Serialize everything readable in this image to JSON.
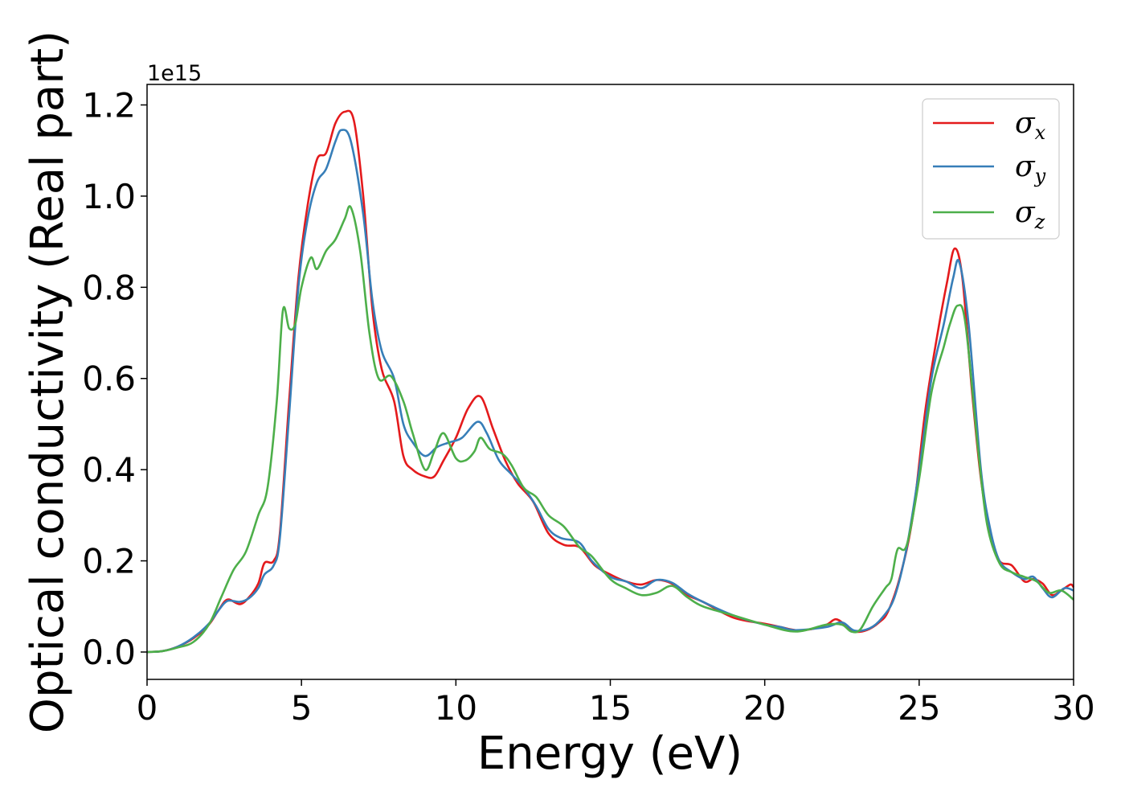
{
  "chart_data": {
    "type": "line",
    "xlabel": "Energy (eV)",
    "ylabel": "Optical conductivity (Real part)",
    "y_offset_label": "1e15",
    "xlim": [
      0,
      30
    ],
    "ylim": [
      -0.06,
      1.245
    ],
    "x_ticks": [
      0,
      5,
      10,
      15,
      20,
      25,
      30
    ],
    "x_tick_labels": [
      "0",
      "5",
      "10",
      "15",
      "20",
      "25",
      "30"
    ],
    "y_ticks": [
      0.0,
      0.2,
      0.4,
      0.6,
      0.8,
      1.0,
      1.2
    ],
    "y_tick_labels": [
      "0.0",
      "0.2",
      "0.4",
      "0.6",
      "0.8",
      "1.0",
      "1.2"
    ],
    "grid": false,
    "legend_position": "top-right",
    "series": [
      {
        "symbol": "σ",
        "subscript": "x",
        "color": "#e41a1c",
        "points": [
          [
            0,
            0
          ],
          [
            0.5,
            0.002
          ],
          [
            1,
            0.012
          ],
          [
            1.5,
            0.03
          ],
          [
            2,
            0.06
          ],
          [
            2.3,
            0.09
          ],
          [
            2.6,
            0.115
          ],
          [
            3,
            0.105
          ],
          [
            3.3,
            0.12
          ],
          [
            3.6,
            0.15
          ],
          [
            3.8,
            0.195
          ],
          [
            4.1,
            0.2
          ],
          [
            4.3,
            0.26
          ],
          [
            4.6,
            0.55
          ],
          [
            4.9,
            0.82
          ],
          [
            5.2,
            0.98
          ],
          [
            5.5,
            1.08
          ],
          [
            5.8,
            1.095
          ],
          [
            6.1,
            1.16
          ],
          [
            6.4,
            1.185
          ],
          [
            6.7,
            1.165
          ],
          [
            7.0,
            1.0
          ],
          [
            7.3,
            0.75
          ],
          [
            7.6,
            0.62
          ],
          [
            8.0,
            0.55
          ],
          [
            8.3,
            0.43
          ],
          [
            8.6,
            0.4
          ],
          [
            9.0,
            0.385
          ],
          [
            9.3,
            0.385
          ],
          [
            9.6,
            0.42
          ],
          [
            10.0,
            0.47
          ],
          [
            10.4,
            0.535
          ],
          [
            10.8,
            0.56
          ],
          [
            11.2,
            0.49
          ],
          [
            11.6,
            0.42
          ],
          [
            12.0,
            0.37
          ],
          [
            12.5,
            0.33
          ],
          [
            13.0,
            0.26
          ],
          [
            13.5,
            0.235
          ],
          [
            14.0,
            0.23
          ],
          [
            14.5,
            0.19
          ],
          [
            15.0,
            0.17
          ],
          [
            15.5,
            0.155
          ],
          [
            16.0,
            0.148
          ],
          [
            16.5,
            0.158
          ],
          [
            17.0,
            0.15
          ],
          [
            17.5,
            0.125
          ],
          [
            18.0,
            0.11
          ],
          [
            19.0,
            0.075
          ],
          [
            20.0,
            0.062
          ],
          [
            20.5,
            0.055
          ],
          [
            21.0,
            0.048
          ],
          [
            21.5,
            0.05
          ],
          [
            22.0,
            0.06
          ],
          [
            22.3,
            0.072
          ],
          [
            22.6,
            0.06
          ],
          [
            22.9,
            0.045
          ],
          [
            23.3,
            0.048
          ],
          [
            23.7,
            0.065
          ],
          [
            24.0,
            0.09
          ],
          [
            24.4,
            0.17
          ],
          [
            24.8,
            0.3
          ],
          [
            25.2,
            0.53
          ],
          [
            25.6,
            0.7
          ],
          [
            25.9,
            0.81
          ],
          [
            26.15,
            0.885
          ],
          [
            26.4,
            0.82
          ],
          [
            26.7,
            0.58
          ],
          [
            27.0,
            0.38
          ],
          [
            27.3,
            0.26
          ],
          [
            27.6,
            0.2
          ],
          [
            28.0,
            0.19
          ],
          [
            28.4,
            0.155
          ],
          [
            28.7,
            0.16
          ],
          [
            29.0,
            0.15
          ],
          [
            29.3,
            0.125
          ],
          [
            29.6,
            0.135
          ],
          [
            29.9,
            0.148
          ],
          [
            30,
            0.142
          ]
        ]
      },
      {
        "symbol": "σ",
        "subscript": "y",
        "color": "#377eb8",
        "points": [
          [
            0,
            0
          ],
          [
            0.5,
            0.002
          ],
          [
            1,
            0.012
          ],
          [
            1.5,
            0.032
          ],
          [
            2,
            0.062
          ],
          [
            2.3,
            0.09
          ],
          [
            2.6,
            0.112
          ],
          [
            3,
            0.11
          ],
          [
            3.3,
            0.118
          ],
          [
            3.6,
            0.14
          ],
          [
            3.8,
            0.17
          ],
          [
            4.1,
            0.19
          ],
          [
            4.3,
            0.25
          ],
          [
            4.6,
            0.52
          ],
          [
            4.9,
            0.8
          ],
          [
            5.2,
            0.95
          ],
          [
            5.5,
            1.03
          ],
          [
            5.8,
            1.06
          ],
          [
            6.1,
            1.12
          ],
          [
            6.3,
            1.145
          ],
          [
            6.6,
            1.12
          ],
          [
            7.0,
            0.96
          ],
          [
            7.3,
            0.77
          ],
          [
            7.6,
            0.66
          ],
          [
            8.0,
            0.6
          ],
          [
            8.3,
            0.5
          ],
          [
            8.6,
            0.46
          ],
          [
            9.0,
            0.43
          ],
          [
            9.4,
            0.45
          ],
          [
            9.8,
            0.46
          ],
          [
            10.2,
            0.47
          ],
          [
            10.7,
            0.505
          ],
          [
            11.0,
            0.48
          ],
          [
            11.4,
            0.42
          ],
          [
            11.8,
            0.39
          ],
          [
            12.2,
            0.36
          ],
          [
            12.6,
            0.32
          ],
          [
            13.0,
            0.27
          ],
          [
            13.4,
            0.25
          ],
          [
            14.0,
            0.24
          ],
          [
            14.4,
            0.2
          ],
          [
            15.0,
            0.165
          ],
          [
            15.5,
            0.155
          ],
          [
            16.0,
            0.14
          ],
          [
            16.5,
            0.158
          ],
          [
            17.0,
            0.152
          ],
          [
            17.5,
            0.128
          ],
          [
            18.0,
            0.11
          ],
          [
            19.0,
            0.08
          ],
          [
            20.0,
            0.06
          ],
          [
            20.5,
            0.055
          ],
          [
            21.0,
            0.048
          ],
          [
            22.0,
            0.055
          ],
          [
            22.5,
            0.065
          ],
          [
            22.9,
            0.047
          ],
          [
            23.4,
            0.052
          ],
          [
            23.8,
            0.075
          ],
          [
            24.2,
            0.12
          ],
          [
            24.6,
            0.23
          ],
          [
            25.0,
            0.4
          ],
          [
            25.4,
            0.6
          ],
          [
            25.8,
            0.72
          ],
          [
            26.1,
            0.82
          ],
          [
            26.3,
            0.855
          ],
          [
            26.6,
            0.72
          ],
          [
            27.0,
            0.4
          ],
          [
            27.3,
            0.27
          ],
          [
            27.6,
            0.2
          ],
          [
            28.0,
            0.175
          ],
          [
            28.4,
            0.16
          ],
          [
            28.7,
            0.165
          ],
          [
            29.0,
            0.14
          ],
          [
            29.3,
            0.12
          ],
          [
            29.7,
            0.14
          ],
          [
            30,
            0.135
          ]
        ]
      },
      {
        "symbol": "σ",
        "subscript": "z",
        "color": "#4daf4a",
        "points": [
          [
            0,
            0
          ],
          [
            0.5,
            0.002
          ],
          [
            1,
            0.01
          ],
          [
            1.5,
            0.022
          ],
          [
            2,
            0.06
          ],
          [
            2.4,
            0.12
          ],
          [
            2.8,
            0.18
          ],
          [
            3.2,
            0.22
          ],
          [
            3.6,
            0.3
          ],
          [
            3.9,
            0.36
          ],
          [
            4.2,
            0.55
          ],
          [
            4.4,
            0.75
          ],
          [
            4.6,
            0.71
          ],
          [
            4.8,
            0.72
          ],
          [
            5.0,
            0.8
          ],
          [
            5.3,
            0.865
          ],
          [
            5.5,
            0.84
          ],
          [
            5.8,
            0.88
          ],
          [
            6.1,
            0.905
          ],
          [
            6.4,
            0.95
          ],
          [
            6.6,
            0.975
          ],
          [
            6.9,
            0.88
          ],
          [
            7.2,
            0.7
          ],
          [
            7.5,
            0.6
          ],
          [
            7.9,
            0.605
          ],
          [
            8.3,
            0.55
          ],
          [
            8.6,
            0.48
          ],
          [
            9.0,
            0.4
          ],
          [
            9.3,
            0.44
          ],
          [
            9.6,
            0.48
          ],
          [
            10.0,
            0.425
          ],
          [
            10.3,
            0.42
          ],
          [
            10.6,
            0.44
          ],
          [
            10.8,
            0.47
          ],
          [
            11.1,
            0.445
          ],
          [
            11.5,
            0.435
          ],
          [
            11.8,
            0.41
          ],
          [
            12.2,
            0.36
          ],
          [
            12.6,
            0.34
          ],
          [
            13.0,
            0.3
          ],
          [
            13.5,
            0.275
          ],
          [
            14.0,
            0.23
          ],
          [
            14.4,
            0.21
          ],
          [
            15.0,
            0.16
          ],
          [
            15.5,
            0.14
          ],
          [
            16.0,
            0.125
          ],
          [
            16.5,
            0.13
          ],
          [
            17.0,
            0.145
          ],
          [
            17.5,
            0.12
          ],
          [
            18.0,
            0.1
          ],
          [
            19.0,
            0.08
          ],
          [
            20.0,
            0.06
          ],
          [
            21.0,
            0.045
          ],
          [
            22.0,
            0.06
          ],
          [
            22.5,
            0.06
          ],
          [
            22.8,
            0.045
          ],
          [
            23.1,
            0.05
          ],
          [
            23.5,
            0.1
          ],
          [
            23.9,
            0.14
          ],
          [
            24.1,
            0.16
          ],
          [
            24.3,
            0.225
          ],
          [
            24.6,
            0.235
          ],
          [
            25.0,
            0.38
          ],
          [
            25.4,
            0.57
          ],
          [
            25.8,
            0.67
          ],
          [
            26.0,
            0.72
          ],
          [
            26.25,
            0.76
          ],
          [
            26.5,
            0.72
          ],
          [
            26.9,
            0.45
          ],
          [
            27.2,
            0.28
          ],
          [
            27.6,
            0.195
          ],
          [
            28.0,
            0.175
          ],
          [
            28.4,
            0.165
          ],
          [
            28.8,
            0.155
          ],
          [
            29.2,
            0.13
          ],
          [
            29.6,
            0.135
          ],
          [
            30,
            0.115
          ]
        ]
      }
    ]
  }
}
